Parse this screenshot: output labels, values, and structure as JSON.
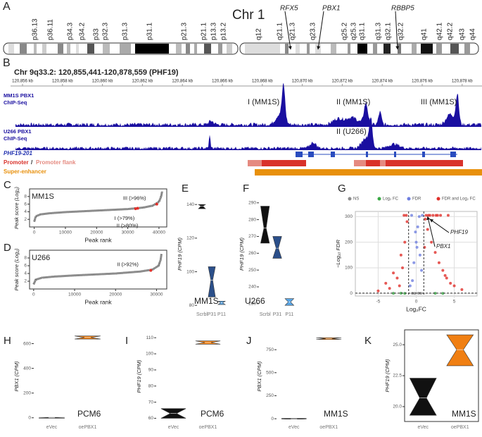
{
  "panel_a": {
    "label": "A",
    "title": "Chr 1",
    "bands": [
      "p36.13",
      "p36.11",
      "p34.3",
      "p34.2",
      "p33",
      "p32.3",
      "p31.3",
      "p31.1",
      "p21.3",
      "p21.1",
      "p13.3",
      "p13.2",
      "q12",
      "q21.1",
      "q21.3",
      "q23.3",
      "q25.2",
      "q25.3",
      "q31.1",
      "q31.3",
      "q32.1",
      "q32.2",
      "q41",
      "q42.1",
      "q42.2",
      "q43",
      "q44"
    ],
    "genes": [
      "RFX5",
      "PBX1",
      "RBBP5"
    ]
  },
  "panel_b": {
    "label": "B",
    "title": "Chr 9q33.2: 120,855,441-120,878,559 (PHF19)",
    "ruler": [
      "120,856 kb",
      "120,858 kb",
      "120,860 kb",
      "120,862 kb",
      "120,864 kb",
      "120,866 kb",
      "120,868 kb",
      "120,870 kb",
      "120,872 kb",
      "120,874 kb",
      "120,876 kb",
      "120,878 kb"
    ],
    "tracks": [
      {
        "name": [
          "MM1S PBX1",
          "ChIP-Seq"
        ],
        "peaks": [
          "I (MM1S)",
          "II (MM1S)",
          "III (MM1S)"
        ]
      },
      {
        "name": [
          "U266 PBX1",
          "ChIP-Seq"
        ],
        "peaks": [
          "II (U266)"
        ]
      }
    ],
    "gene": "PHF19-201",
    "promoter": "Promoter",
    "separator": "/",
    "promoter_flank": "Promoter flank",
    "super_enhancer": "Super-enhancer"
  },
  "chart_data": [
    {
      "type": "rank",
      "label": "C",
      "title": "MM1S",
      "x": [
        0,
        500,
        2000,
        5000,
        10000,
        20000,
        30000,
        35000,
        38000,
        40000,
        40700,
        41000
      ],
      "values": [
        1.4,
        2.8,
        3.3,
        3.6,
        3.9,
        4.3,
        4.7,
        5.1,
        5.6,
        6.6,
        8,
        9.3
      ],
      "color": "#666666",
      "highlight_color": "#e0302a",
      "xlim": [
        -1500,
        42500
      ],
      "ylim": [
        0,
        10
      ],
      "xticks": [
        0,
        10000,
        20000,
        30000,
        40000
      ],
      "yticks": [
        2,
        4,
        6,
        8
      ],
      "xlabel": "Peak rank",
      "ylabel": "Peak score (Log₂)",
      "annotations": [
        {
          "text": "III (>96%)",
          "x": 39300,
          "y": 6
        },
        {
          "text": "I (>79%)",
          "x": 32500,
          "y": 4.8
        },
        {
          "text": "II (>80%)",
          "x": 33200,
          "y": 4.9
        }
      ]
    },
    {
      "type": "rank",
      "label": "D",
      "title": "U266",
      "x": [
        0,
        500,
        2000,
        5000,
        10000,
        20000,
        26000,
        29000,
        30500,
        31000,
        31200
      ],
      "values": [
        1.2,
        2.4,
        2.9,
        3.2,
        3.5,
        4,
        4.5,
        5,
        6,
        7.5,
        9
      ],
      "color": "#666666",
      "highlight_color": "#e0302a",
      "xlim": [
        -1000,
        32500
      ],
      "ylim": [
        0,
        10
      ],
      "xticks": [
        0,
        10000,
        20000,
        30000
      ],
      "yticks": [
        2,
        4,
        6,
        8
      ],
      "xlabel": "Peak rank",
      "ylabel": "Peak score (Log₂)",
      "annotations": [
        {
          "text": "II (>92%)",
          "x": 28600,
          "y": 4.8
        }
      ]
    },
    {
      "type": "notch",
      "label": "E",
      "title": "MM1S",
      "categories": [
        "Scrbl",
        "P31",
        "P11"
      ],
      "values": [
        139,
        95,
        81.5
      ],
      "lows": [
        137.5,
        85,
        80.5
      ],
      "highs": [
        140,
        103,
        82.5
      ],
      "colors": [
        "#111111",
        "#2b4f8a",
        "#5aa7e8"
      ],
      "ylim": [
        78,
        143
      ],
      "yticks": [
        80,
        100,
        120,
        140
      ],
      "ylabel": "PHF19 (CPM)"
    },
    {
      "type": "notch",
      "label": "F",
      "title": "U266",
      "categories": [
        "Scrbl",
        "P31",
        "P11"
      ],
      "values": [
        275,
        263,
        231
      ],
      "lows": [
        266,
        257,
        229
      ],
      "highs": [
        288,
        270,
        233
      ],
      "colors": [
        "#111111",
        "#2b4f8a",
        "#5aa7e8"
      ],
      "ylim": [
        227,
        292
      ],
      "yticks": [
        230,
        240,
        250,
        260,
        270,
        280,
        290
      ],
      "ylabel": "PHF19 (CPM)"
    },
    {
      "type": "volcano",
      "label": "G",
      "xlim": [
        -8,
        8
      ],
      "ylim": [
        -10,
        320
      ],
      "xticks": [
        -5,
        0,
        5
      ],
      "yticks": [
        0,
        100,
        200,
        300
      ],
      "grid": true,
      "legend": "top",
      "xlabel": "Log₂FC",
      "ylabel": "−Log₁₀ FDR",
      "thresholds": {
        "x": [
          -1,
          1
        ],
        "y": 1.3
      },
      "series": [
        {
          "name": "NS",
          "color": "#8c8c8c",
          "x": [
            -0.5,
            0.3,
            0.6,
            -0.2
          ],
          "values": [
            0.5,
            1,
            0.8,
            0.3
          ]
        },
        {
          "name": "Log₂ FC",
          "color": "#3aa845",
          "x": [
            -3,
            -2,
            2.5,
            3.5,
            -1.5
          ],
          "values": [
            0.5,
            1,
            0.8,
            0.4,
            0.2
          ]
        },
        {
          "name": "FDR",
          "color": "#6f7fe0",
          "x": [
            -0.5,
            -0.3,
            0,
            0.2,
            0.5,
            0.7,
            -0.8,
            0.4,
            0.1,
            -0.1,
            0.8,
            -0.6
          ],
          "values": [
            50,
            120,
            200,
            260,
            150,
            90,
            30,
            300,
            180,
            240,
            305,
            305
          ]
        },
        {
          "name": "FDR and Log₂ FC",
          "color": "#e0302a",
          "x": [
            -4,
            -3,
            -2.5,
            -2,
            -1.5,
            -1.2,
            1.2,
            1.5,
            2,
            2.5,
            3,
            3.5,
            4,
            4.5,
            5,
            1.8,
            2.2,
            1.3,
            -1.8,
            -3.5,
            -1.3,
            2.8,
            3.8,
            1.1,
            1.6,
            -2.2,
            6,
            -5,
            3.2,
            4.2,
            2.6,
            -1.6
          ],
          "values": [
            40,
            80,
            60,
            150,
            200,
            280,
            290,
            250,
            200,
            160,
            120,
            90,
            60,
            40,
            30,
            305,
            305,
            305,
            100,
            20,
            305,
            305,
            70,
            180,
            305,
            30,
            15,
            10,
            305,
            305,
            305,
            305
          ]
        }
      ],
      "annotations": [
        {
          "text": "PHF19",
          "x": 1.8,
          "y": 290
        },
        {
          "text": "PBX1",
          "x": 1.5,
          "y": 300
        }
      ]
    },
    {
      "type": "notch",
      "label": "H",
      "title": "PCM6",
      "categories": [
        "eVec",
        "oePBX1"
      ],
      "values": [
        0,
        650
      ],
      "lows": [
        -3,
        637
      ],
      "highs": [
        3,
        662
      ],
      "colors": [
        "#111111",
        "#f07f12"
      ],
      "ylim": [
        -30,
        700
      ],
      "yticks": [
        0,
        200,
        400,
        600
      ],
      "ylabel": "PBX1 (CPM)"
    },
    {
      "type": "notch",
      "label": "I",
      "title": "PCM6",
      "categories": [
        "eVec",
        "oePBX1"
      ],
      "values": [
        63,
        107
      ],
      "lows": [
        60,
        106
      ],
      "highs": [
        66,
        108
      ],
      "colors": [
        "#111111",
        "#f07f12"
      ],
      "ylim": [
        58,
        114
      ],
      "yticks": [
        60,
        70,
        80,
        90,
        100,
        110
      ],
      "ylabel": "PHF19 (CPM)"
    },
    {
      "type": "notch",
      "label": "J",
      "title": "MM1S",
      "categories": [
        "eVec",
        "oePBX1"
      ],
      "values": [
        0,
        870
      ],
      "lows": [
        -4,
        860
      ],
      "highs": [
        4,
        880
      ],
      "colors": [
        "#111111",
        "#f07f12"
      ],
      "ylim": [
        -30,
        950
      ],
      "yticks": [
        0,
        250,
        500,
        750
      ],
      "ylabel": "PBX1 (CPM)"
    },
    {
      "type": "notch",
      "label": "K",
      "title": "MM1S",
      "categories": [
        "eVec",
        "oePBX1"
      ],
      "values": [
        20.7,
        24.6
      ],
      "lows": [
        19.3,
        23.3
      ],
      "highs": [
        22.3,
        25.8
      ],
      "colors": [
        "#111111",
        "#f07f12"
      ],
      "ylim": [
        18.8,
        26.2
      ],
      "yticks": [
        {
          "value": 20,
          "label": "20.0"
        },
        {
          "value": 22.5,
          "label": "22.5"
        },
        {
          "value": 25,
          "label": "25.0"
        }
      ],
      "ylabel": "PHF19 (CPM)",
      "frame": true
    }
  ]
}
